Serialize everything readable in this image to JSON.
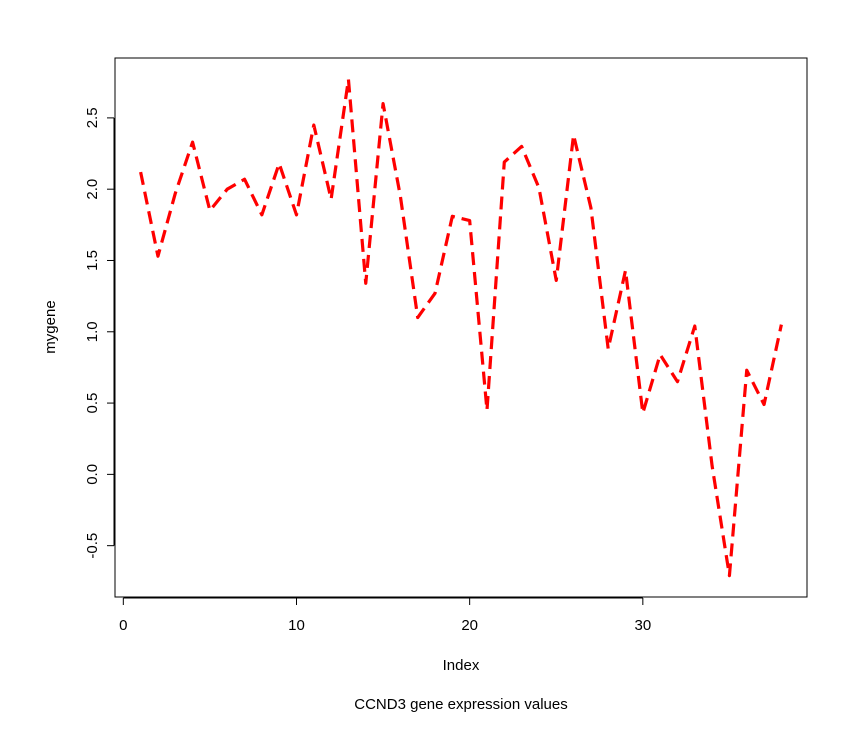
{
  "chart_data": {
    "type": "line",
    "title": "",
    "subtitle": "CCND3 gene expression values",
    "xlabel": "Index",
    "ylabel": "mygene",
    "xlim": [
      1,
      38
    ],
    "ylim": [
      -0.72,
      2.78
    ],
    "x_ticks": [
      0,
      10,
      20,
      30
    ],
    "y_ticks": [
      -0.5,
      0.0,
      0.5,
      1.0,
      1.5,
      2.0,
      2.5
    ],
    "x_tick_labels": [
      "0",
      "10",
      "20",
      "30"
    ],
    "y_tick_labels": [
      "-0.5",
      "0.0",
      "0.5",
      "1.0",
      "1.5",
      "2.0",
      "2.5"
    ],
    "line_style": "dashed",
    "line_color": "#ff0000",
    "grid": false,
    "series": [
      {
        "x": [
          1,
          2,
          3,
          4,
          5,
          6,
          7,
          8,
          9,
          10,
          11,
          12,
          13,
          14,
          15,
          16,
          17,
          18,
          19,
          20,
          21,
          22,
          23,
          24,
          25,
          26,
          27,
          28,
          29,
          30,
          31,
          32,
          33,
          34,
          35,
          36,
          37,
          38
        ],
        "values": [
          2.12,
          1.53,
          1.97,
          2.33,
          1.85,
          2.0,
          2.07,
          1.82,
          2.18,
          1.82,
          2.45,
          1.93,
          2.77,
          1.34,
          2.6,
          1.95,
          1.1,
          1.27,
          1.81,
          1.78,
          0.45,
          2.19,
          2.3,
          2.01,
          1.36,
          2.38,
          1.87,
          0.88,
          1.43,
          0.43,
          0.84,
          0.65,
          1.04,
          0.06,
          -0.71,
          0.73,
          0.49,
          1.05
        ]
      }
    ]
  }
}
